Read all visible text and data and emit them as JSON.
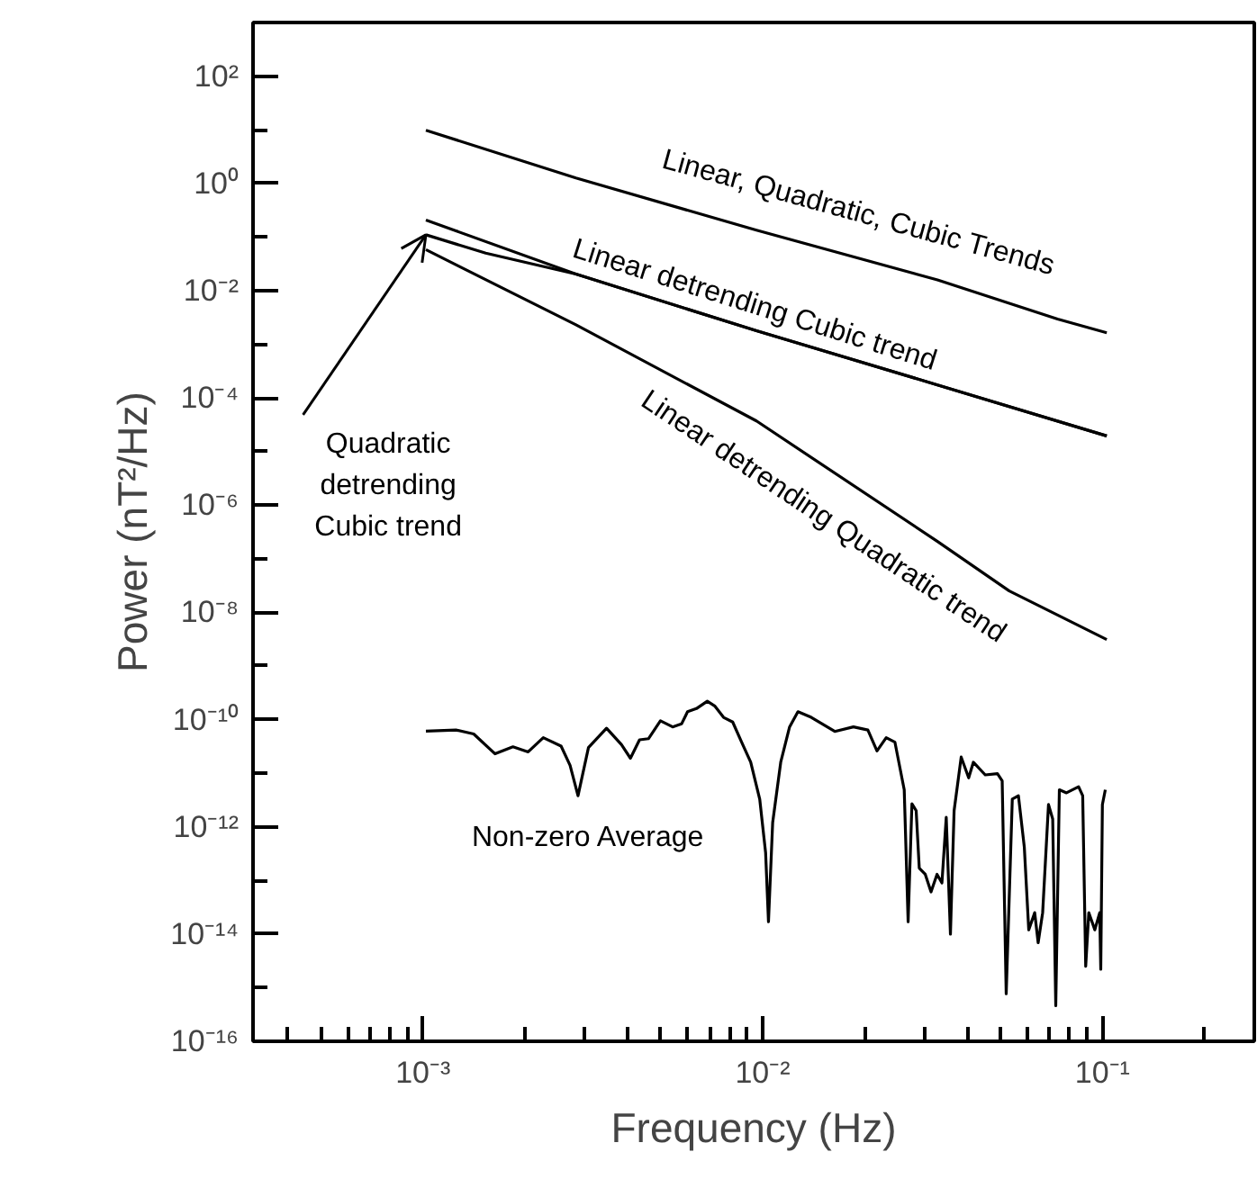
{
  "chart_data": {
    "type": "line",
    "xlabel": "Frequency (Hz)",
    "ylabel": "Power (nT²/Hz)",
    "log": "xy",
    "xlim": [
      0.000316,
      0.28
    ],
    "ylim": [
      1e-16,
      1000
    ],
    "xticks": [
      {
        "value": 0.001,
        "label": "10⁻³"
      },
      {
        "value": 0.01,
        "label": "10⁻²"
      },
      {
        "value": 0.1,
        "label": "10⁻¹"
      }
    ],
    "yticks": [
      {
        "value": 100,
        "label": "10²"
      },
      {
        "value": 1,
        "label": "10⁰"
      },
      {
        "value": 0.01,
        "label": "10⁻²"
      },
      {
        "value": 0.0001,
        "label": "10⁻⁴"
      },
      {
        "value": 1e-06,
        "label": "10⁻⁶"
      },
      {
        "value": 1e-08,
        "label": "10⁻⁸"
      },
      {
        "value": 1e-10,
        "label": "10⁻¹⁰"
      },
      {
        "value": 1e-12,
        "label": "10⁻¹²"
      },
      {
        "value": 1e-14,
        "label": "10⁻¹⁴"
      },
      {
        "value": 1e-16,
        "label": "10⁻¹⁶"
      }
    ],
    "annotations": [
      {
        "text": "Quadratic detrending Cubic trend",
        "x": 0.00102,
        "y": 0.11
      }
    ],
    "grid": false,
    "legend": false,
    "marker": "none",
    "line_style": "solid",
    "series": [
      {
        "name": "Linear, Quadratic, Cubic Trends",
        "color": "#000000",
        "x": [
          0.00102,
          0.00282,
          0.00959,
          0.0327,
          0.0738,
          0.103
        ],
        "values": [
          9.8,
          1.26,
          0.134,
          0.0158,
          0.00295,
          0.00164
        ]
      },
      {
        "name": "Linear detrending Cubic trend",
        "color": "#000000",
        "x": [
          0.00102,
          0.00282,
          0.00959,
          0.0327,
          0.103
        ],
        "values": [
          0.207,
          0.0204,
          0.00178,
          0.000174,
          1.95e-05
        ]
      },
      {
        "color": "#000000",
        "x": [
          0.00102,
          0.00153,
          0.00282,
          0.00959,
          0.0327,
          0.103
        ],
        "values": [
          0.11,
          0.05,
          0.0204,
          0.00178,
          0.000174,
          1.95e-05
        ]
      },
      {
        "name": "Linear detrending Quadratic trend",
        "color": "#000000",
        "x": [
          0.00102,
          0.00282,
          0.00959,
          0.0327,
          0.0532,
          0.103
        ],
        "values": [
          0.058,
          0.0023,
          3.7e-05,
          2.1e-07,
          2.5e-08,
          3.1e-09
        ]
      },
      {
        "name": "Non-zero Average",
        "color": "#000000",
        "x": [
          0.00102,
          0.00125,
          0.00141,
          0.00163,
          0.00184,
          0.00204,
          0.00226,
          0.00255,
          0.00271,
          0.00286,
          0.00307,
          0.00347,
          0.00384,
          0.00408,
          0.00434,
          0.00461,
          0.005,
          0.00543,
          0.00577,
          0.00601,
          0.00638,
          0.00687,
          0.00722,
          0.00767,
          0.00816,
          0.00867,
          0.00922,
          0.0098,
          0.0102,
          0.0104,
          0.0107,
          0.0113,
          0.012,
          0.0127,
          0.0139,
          0.0163,
          0.0185,
          0.0204,
          0.0217,
          0.0231,
          0.0245,
          0.0261,
          0.0268,
          0.0275,
          0.0283,
          0.0289,
          0.0301,
          0.0313,
          0.0326,
          0.0337,
          0.0347,
          0.0357,
          0.0366,
          0.0384,
          0.0404,
          0.0417,
          0.0452,
          0.0491,
          0.0507,
          0.0521,
          0.0543,
          0.0566,
          0.0589,
          0.0607,
          0.0632,
          0.0647,
          0.0667,
          0.0694,
          0.0714,
          0.0729,
          0.0747,
          0.0784,
          0.0851,
          0.0875,
          0.0893,
          0.0912,
          0.095,
          0.0982,
          0.0989,
          0.1,
          0.102
        ],
        "values": [
          6.1e-11,
          6.4e-11,
          5.4e-11,
          2.3e-11,
          3.1e-11,
          2.5e-11,
          4.6e-11,
          3.2e-11,
          1.4e-11,
          3.8e-12,
          3e-11,
          6.9e-11,
          3.4e-11,
          1.9e-11,
          4.2e-11,
          4.4e-11,
          9.5e-11,
          7.3e-11,
          8.3e-11,
          1.4e-10,
          1.6e-10,
          2.2e-10,
          1.8e-10,
          1.1e-10,
          9e-11,
          3.8e-11,
          1.6e-11,
          3.3e-12,
          3.3e-13,
          1.7e-14,
          1.2e-12,
          1.6e-11,
          7.3e-11,
          1.4e-10,
          1.1e-10,
          6e-11,
          7.3e-11,
          6.4e-11,
          2.6e-11,
          4.6e-11,
          3.8e-11,
          4.9e-12,
          1.7e-14,
          2.7e-12,
          2e-12,
          1.7e-13,
          1.3e-13,
          6.1e-14,
          1.3e-13,
          9e-14,
          1.5e-12,
          1e-14,
          2e-12,
          2e-11,
          8.2e-12,
          1.6e-11,
          9.3e-12,
          9.8e-12,
          7.2e-12,
          7.7e-16,
          3.3e-12,
          3.8e-12,
          4.2e-13,
          1.2e-14,
          2.5e-14,
          6.9e-15,
          2.5e-14,
          2.6e-12,
          1.4e-12,
          4.6e-16,
          4.9e-12,
          4.3e-12,
          5.6e-12,
          3.8e-12,
          2.5e-15,
          2.5e-14,
          1.2e-14,
          2.5e-14,
          2.2e-15,
          2.6e-12,
          4.9e-12
        ]
      }
    ]
  }
}
